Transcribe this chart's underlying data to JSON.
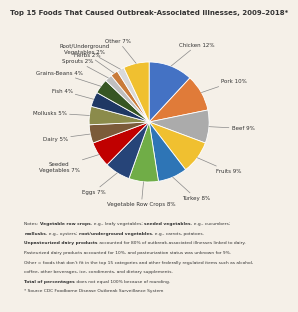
{
  "title": "Top 15 Foods That Caused Outbreak-Associated Illnesses, 2009–2018*",
  "slices": [
    {
      "label": "Chicken 12%",
      "value": 12,
      "color": "#4472C4"
    },
    {
      "label": "Pork 10%",
      "value": 10,
      "color": "#E07B39"
    },
    {
      "label": "Beef 9%",
      "value": 9,
      "color": "#ABABAB"
    },
    {
      "label": "Fruits 9%",
      "value": 9,
      "color": "#F0C030"
    },
    {
      "label": "Turkey 8%",
      "value": 8,
      "color": "#2E75B6"
    },
    {
      "label": "Vegetable Row Crops 8%",
      "value": 8,
      "color": "#70AD47"
    },
    {
      "label": "Eggs 7%",
      "value": 7,
      "color": "#264478"
    },
    {
      "label": "Seeded\nVegetables 7%",
      "value": 7,
      "color": "#C00000"
    },
    {
      "label": "Dairy 5%",
      "value": 5,
      "color": "#7B5B3A"
    },
    {
      "label": "Mollusks 5%",
      "value": 5,
      "color": "#8B8B4B"
    },
    {
      "label": "Fish 4%",
      "value": 4,
      "color": "#1F3864"
    },
    {
      "label": "Grains-Beans 4%",
      "value": 4,
      "color": "#375623"
    },
    {
      "label": "Sprouts 2%",
      "value": 2,
      "color": "#BFBFBF"
    },
    {
      "label": "Herbs 2%",
      "value": 2,
      "color": "#C97B3A"
    },
    {
      "label": "Root/Underground\nVegetables 2%",
      "value": 2,
      "color": "#D9D9D9"
    },
    {
      "label": "Other 7%",
      "value": 7,
      "color": "#F0C030"
    }
  ],
  "note_lines": [
    [
      "normal",
      "Notes: ",
      "bold",
      "Vegetable row crops",
      "normal",
      ", e.g., leafy vegetables; ",
      "bold",
      "seeded vegetables",
      "normal",
      ", e.g., cucumbers;"
    ],
    [
      "bold",
      "mollusks",
      "normal",
      ", e.g., oysters; ",
      "bold",
      "root/underground vegetables",
      "normal",
      ", e.g., carrots, potatoes."
    ],
    [
      "bold",
      "Unpasteurized dairy products",
      "normal",
      " accounted for 80% of outbreak-associated illnesses linked to dairy."
    ],
    [
      "normal",
      "Pasteurized dairy products accounted for 10%, and pasteurization status was unknown for 9%."
    ],
    [
      "normal",
      "Other = foods that don’t fit in the top 15 categories and other federally regulated items such as alcohol,"
    ],
    [
      "normal",
      "coffee, other beverages, ice, condiments, and dietary supplements."
    ],
    [
      "bold",
      "Total of percentages",
      "normal",
      " does not equal 100% because of rounding."
    ],
    [
      "normal",
      "* Source CDC Foodborne Disease Outbreak Surveillance System"
    ]
  ],
  "background_color": "#F5F0E8",
  "label_fontsize": 4.0,
  "title_fontsize": 5.0
}
